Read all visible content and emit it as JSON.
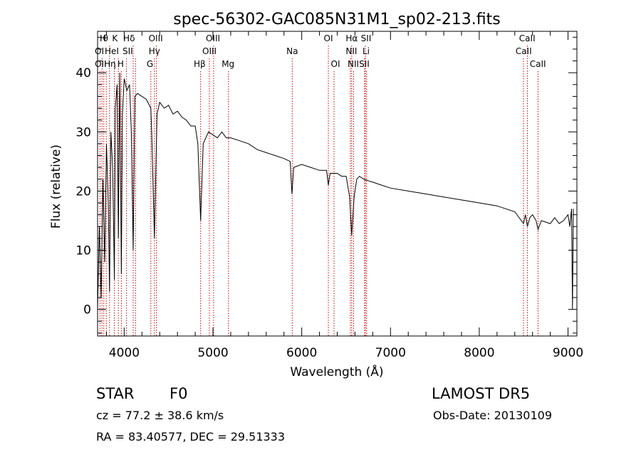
{
  "chart_data": {
    "type": "line",
    "title": "spec-56302-GAC085N31M1_sp02-213.fits",
    "xlabel": "Wavelength (Å)",
    "ylabel": "Flux (relative)",
    "xlim": [
      3700,
      9100
    ],
    "ylim": [
      -4.5,
      47
    ],
    "xticks": [
      4000,
      5000,
      6000,
      7000,
      8000,
      9000
    ],
    "yticks": [
      0,
      10,
      20,
      30,
      40
    ],
    "series": [
      {
        "points": [
          [
            3700,
            0
          ],
          [
            3720,
            14
          ],
          [
            3740,
            2
          ],
          [
            3760,
            22
          ],
          [
            3780,
            8
          ],
          [
            3800,
            28
          ],
          [
            3820,
            18
          ],
          [
            3835,
            3
          ],
          [
            3850,
            30
          ],
          [
            3870,
            24
          ],
          [
            3889,
            5
          ],
          [
            3900,
            34
          ],
          [
            3920,
            38
          ],
          [
            3934,
            12
          ],
          [
            3950,
            40
          ],
          [
            3968,
            6
          ],
          [
            3980,
            33
          ],
          [
            4000,
            39
          ],
          [
            4030,
            37
          ],
          [
            4060,
            38
          ],
          [
            4080,
            30
          ],
          [
            4101,
            10
          ],
          [
            4120,
            36
          ],
          [
            4150,
            36.5
          ],
          [
            4200,
            36
          ],
          [
            4250,
            35.5
          ],
          [
            4300,
            34
          ],
          [
            4310,
            30
          ],
          [
            4340,
            12
          ],
          [
            4370,
            33
          ],
          [
            4400,
            35
          ],
          [
            4450,
            34
          ],
          [
            4500,
            34.5
          ],
          [
            4550,
            33
          ],
          [
            4600,
            33.5
          ],
          [
            4650,
            32.5
          ],
          [
            4700,
            32
          ],
          [
            4750,
            31
          ],
          [
            4800,
            31
          ],
          [
            4830,
            28
          ],
          [
            4861,
            15
          ],
          [
            4890,
            28
          ],
          [
            4920,
            29
          ],
          [
            4950,
            30
          ],
          [
            5000,
            29.5
          ],
          [
            5050,
            29
          ],
          [
            5100,
            30
          ],
          [
            5150,
            29
          ],
          [
            5200,
            29
          ],
          [
            5300,
            28.5
          ],
          [
            5400,
            28
          ],
          [
            5500,
            27
          ],
          [
            5600,
            26.5
          ],
          [
            5700,
            26
          ],
          [
            5800,
            25.5
          ],
          [
            5870,
            25
          ],
          [
            5890,
            19.5
          ],
          [
            5910,
            24
          ],
          [
            6000,
            24.5
          ],
          [
            6100,
            24
          ],
          [
            6200,
            23.5
          ],
          [
            6280,
            23.5
          ],
          [
            6300,
            21
          ],
          [
            6320,
            23
          ],
          [
            6400,
            23
          ],
          [
            6450,
            22.5
          ],
          [
            6500,
            22.5
          ],
          [
            6540,
            19
          ],
          [
            6563,
            12.5
          ],
          [
            6590,
            19
          ],
          [
            6620,
            22
          ],
          [
            6650,
            22.5
          ],
          [
            6700,
            22
          ],
          [
            6800,
            21.5
          ],
          [
            6900,
            21
          ],
          [
            7000,
            20.5
          ],
          [
            7200,
            20
          ],
          [
            7400,
            19.5
          ],
          [
            7600,
            19
          ],
          [
            7800,
            18.5
          ],
          [
            8000,
            18
          ],
          [
            8200,
            17.5
          ],
          [
            8400,
            16.5
          ],
          [
            8498,
            14.5
          ],
          [
            8520,
            16
          ],
          [
            8542,
            14
          ],
          [
            8570,
            15.5
          ],
          [
            8600,
            16
          ],
          [
            8640,
            15
          ],
          [
            8662,
            13.5
          ],
          [
            8700,
            15
          ],
          [
            8800,
            14.5
          ],
          [
            8850,
            15.5
          ],
          [
            8900,
            14.5
          ],
          [
            8950,
            15
          ],
          [
            9000,
            16
          ],
          [
            9020,
            14
          ],
          [
            9040,
            17
          ],
          [
            9050,
            0
          ],
          [
            9060,
            17
          ]
        ]
      }
    ],
    "line_markers": [
      {
        "wavelength": 3727,
        "rows": [
          2
        ]
      },
      {
        "wavelength": 3750,
        "rows": [
          0,
          1
        ]
      },
      {
        "wavelength": 3770,
        "rows": [
          2
        ]
      },
      {
        "wavelength": 3798,
        "rows": [
          2
        ]
      },
      {
        "wavelength": 3835,
        "rows": [
          0
        ]
      },
      {
        "wavelength": 3889,
        "rows": [
          0,
          1
        ]
      },
      {
        "wavelength": 3934,
        "rows": [
          0,
          1
        ]
      },
      {
        "wavelength": 3968,
        "rows": [
          2
        ]
      },
      {
        "wavelength": 4026,
        "rows": [
          1
        ]
      },
      {
        "wavelength": 4101,
        "rows": [
          0
        ]
      },
      {
        "wavelength": 4128,
        "rows": [
          1
        ]
      },
      {
        "wavelength": 4300,
        "rows": [
          2
        ]
      },
      {
        "wavelength": 4340,
        "rows": [
          1
        ]
      },
      {
        "wavelength": 4363,
        "rows": [
          0
        ]
      },
      {
        "wavelength": 4861,
        "rows": [
          2
        ]
      },
      {
        "wavelength": 4959,
        "rows": [
          1
        ]
      },
      {
        "wavelength": 5007,
        "rows": [
          0
        ]
      },
      {
        "wavelength": 5175,
        "rows": [
          2
        ]
      },
      {
        "wavelength": 5893,
        "rows": [
          1
        ]
      },
      {
        "wavelength": 6300,
        "rows": [
          0
        ]
      },
      {
        "wavelength": 6364,
        "rows": [
          2
        ]
      },
      {
        "wavelength": 6548,
        "rows": [
          1
        ]
      },
      {
        "wavelength": 6563,
        "rows": [
          0
        ]
      },
      {
        "wavelength": 6584,
        "rows": [
          2
        ]
      },
      {
        "wavelength": 6708,
        "rows": [
          1
        ]
      },
      {
        "wavelength": 6717,
        "rows": [
          0
        ]
      },
      {
        "wavelength": 6731,
        "rows": [
          2
        ]
      },
      {
        "wavelength": 8498,
        "rows": [
          1
        ]
      },
      {
        "wavelength": 8542,
        "rows": [
          0
        ]
      },
      {
        "wavelength": 8662,
        "rows": [
          2
        ]
      }
    ],
    "line_labels": [
      {
        "text": "H",
        "wavelength": 3760,
        "row": 0
      },
      {
        "text": "θ",
        "wavelength": 3790,
        "row": 0
      },
      {
        "text": "K",
        "wavelength": 3895,
        "row": 0
      },
      {
        "text": "Hδ",
        "wavelength": 4055,
        "row": 0
      },
      {
        "text": "OIII",
        "wavelength": 4355,
        "row": 0
      },
      {
        "text": "OIII",
        "wavelength": 5000,
        "row": 0
      },
      {
        "text": "OI",
        "wavelength": 6300,
        "row": 0
      },
      {
        "text": "Hα",
        "wavelength": 6563,
        "row": 0
      },
      {
        "text": "SII",
        "wavelength": 6725,
        "row": 0
      },
      {
        "text": "CaII",
        "wavelength": 8540,
        "row": 0
      },
      {
        "text": "OI",
        "wavelength": 3720,
        "row": 1
      },
      {
        "text": "HeI",
        "wavelength": 3860,
        "row": 1
      },
      {
        "text": "SII",
        "wavelength": 4040,
        "row": 1
      },
      {
        "text": "Hγ",
        "wavelength": 4340,
        "row": 1
      },
      {
        "text": "OIII",
        "wavelength": 4960,
        "row": 1
      },
      {
        "text": "Na",
        "wavelength": 5893,
        "row": 1
      },
      {
        "text": "NII",
        "wavelength": 6560,
        "row": 1
      },
      {
        "text": "Li",
        "wavelength": 6725,
        "row": 1
      },
      {
        "text": "CaII",
        "wavelength": 8500,
        "row": 1
      },
      {
        "text": "OII",
        "wavelength": 3735,
        "row": 2
      },
      {
        "text": "Hη",
        "wavelength": 3840,
        "row": 2
      },
      {
        "text": "H",
        "wavelength": 3960,
        "row": 2
      },
      {
        "text": "G",
        "wavelength": 4290,
        "row": 2
      },
      {
        "text": "Hβ",
        "wavelength": 4850,
        "row": 2
      },
      {
        "text": "Mg",
        "wavelength": 5170,
        "row": 2
      },
      {
        "text": "OI",
        "wavelength": 6380,
        "row": 2
      },
      {
        "text": "NIISII",
        "wavelength": 6640,
        "row": 2
      },
      {
        "text": "CaII",
        "wavelength": 8660,
        "row": 2
      }
    ],
    "grid": false,
    "line_color": "#000000",
    "marker_color": "#cc0000"
  },
  "info": {
    "class": "STAR",
    "subclass": "F0",
    "cz": "cz = 77.2 ± 38.6 km/s",
    "coords": "RA =  83.40577, DEC =  29.51333",
    "survey": "LAMOST DR5",
    "obs_date": "Obs-Date: 20130109"
  }
}
